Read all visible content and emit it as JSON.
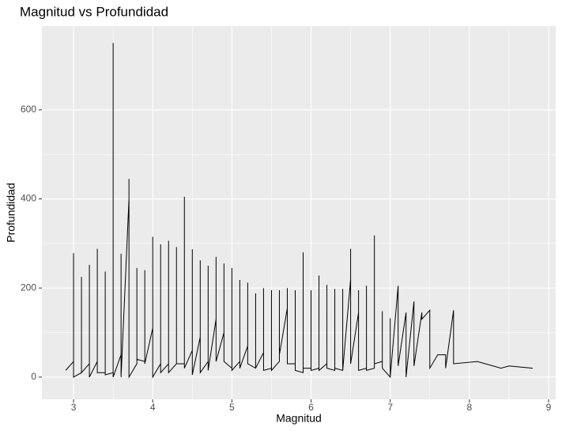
{
  "chart_data": {
    "type": "line",
    "title": "Magnitud vs Profundidad",
    "x_label": "Magnitud",
    "y_label": "Profundidad",
    "color": "#000000",
    "grid": true,
    "xlim": [
      2.6,
      9.09
    ],
    "ylim": [
      -50,
      788
    ],
    "xticks": [
      3,
      4,
      5,
      6,
      7,
      8,
      9
    ],
    "yticks": [
      0,
      200,
      400,
      600
    ],
    "x": [
      2.9,
      3,
      3,
      3,
      3.1,
      3.1,
      3.1,
      3.2,
      3.2,
      3.2,
      3.3,
      3.3,
      3.3,
      3.4,
      3.4,
      3.4,
      3.5,
      3.5,
      3.5,
      3.6,
      3.6,
      3.6,
      3.7,
      3.7,
      3.7,
      3.8,
      3.8,
      3.8,
      3.8,
      3.9,
      3.9,
      3.9,
      4,
      4,
      4,
      4.1,
      4.1,
      4.1,
      4.2,
      4.2,
      4.2,
      4.3,
      4.3,
      4.3,
      4.4,
      4.4,
      4.4,
      4.5,
      4.5,
      4.5,
      4.6,
      4.6,
      4.6,
      4.7,
      4.7,
      4.7,
      4.8,
      4.8,
      4.8,
      4.9,
      4.9,
      4.9,
      5,
      5,
      5,
      5.1,
      5.1,
      5.1,
      5.2,
      5.2,
      5.2,
      5.3,
      5.3,
      5.3,
      5.4,
      5.4,
      5.4,
      5.5,
      5.5,
      5.5,
      5.6,
      5.6,
      5.6,
      5.7,
      5.7,
      5.7,
      5.8,
      5.8,
      5.8,
      5.9,
      5.9,
      5.9,
      6,
      6,
      6,
      6.1,
      6.1,
      6.1,
      6.2,
      6.2,
      6.2,
      6.3,
      6.3,
      6.3,
      6.4,
      6.4,
      6.4,
      6.5,
      6.5,
      6.5,
      6.5,
      6.6,
      6.6,
      6.6,
      6.7,
      6.7,
      6.7,
      6.8,
      6.8,
      6.8,
      6.9,
      6.9,
      6.9,
      7,
      7,
      7,
      7.1,
      7.1,
      7.2,
      7.2,
      7.3,
      7.3,
      7.4,
      7.4,
      7.5,
      7.5,
      7.6,
      7.7,
      7.7,
      7.8,
      7.8,
      8.1,
      8.4,
      8.5,
      8.8
    ],
    "values": [
      15,
      35,
      278,
      0,
      10,
      225,
      10,
      30,
      252,
      0,
      35,
      288,
      10,
      10,
      237,
      5,
      10,
      750,
      0,
      50,
      277,
      0,
      400,
      445,
      0,
      30,
      245,
      145,
      40,
      35,
      240,
      30,
      110,
      315,
      0,
      30,
      298,
      10,
      30,
      306,
      10,
      30,
      292,
      30,
      30,
      405,
      20,
      60,
      287,
      5,
      90,
      262,
      10,
      35,
      250,
      15,
      130,
      270,
      35,
      100,
      255,
      35,
      20,
      245,
      15,
      35,
      218,
      20,
      70,
      212,
      30,
      20,
      188,
      20,
      55,
      200,
      15,
      20,
      195,
      15,
      35,
      195,
      50,
      155,
      200,
      30,
      30,
      195,
      15,
      10,
      280,
      20,
      20,
      195,
      15,
      20,
      228,
      15,
      30,
      207,
      20,
      15,
      198,
      20,
      15,
      198,
      15,
      220,
      288,
      130,
      30,
      145,
      195,
      15,
      20,
      205,
      15,
      20,
      318,
      30,
      35,
      148,
      20,
      0,
      132,
      0,
      205,
      25,
      145,
      0,
      170,
      25,
      145,
      130,
      150,
      20,
      50,
      50,
      20,
      150,
      30,
      35,
      20,
      25,
      20
    ]
  }
}
